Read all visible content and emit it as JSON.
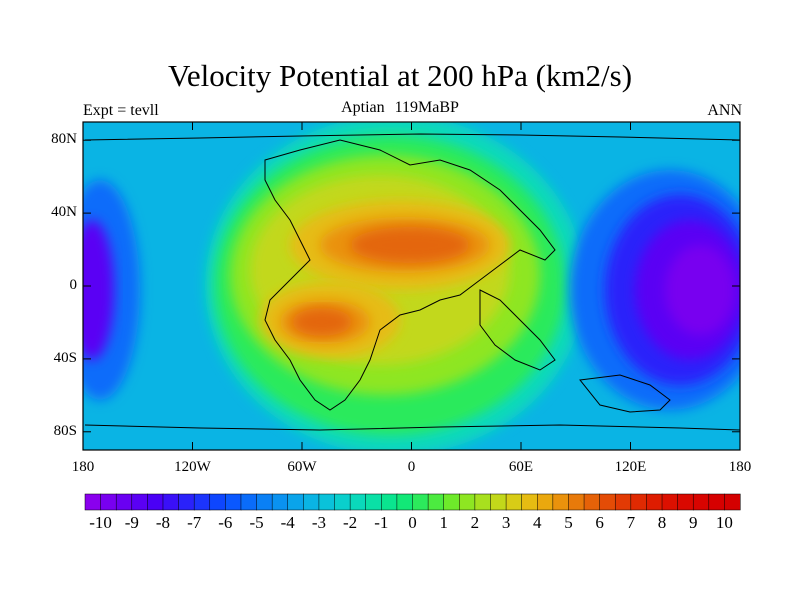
{
  "title": "Velocity Potential at 200 hPa (km2/s)",
  "left_label": "Expt = tevll",
  "center_label": "Aptian  119MaBP",
  "right_label": "ANN",
  "map": {
    "projection": "cylindrical equidistant",
    "lat_range": [
      -90,
      90
    ],
    "lon_range": [
      -180,
      180
    ],
    "lat_ticks": [
      "80N",
      "40N",
      "0",
      "40S",
      "80S"
    ],
    "lon_ticks": [
      "180",
      "120W",
      "60W",
      "0",
      "60E",
      "120E",
      "180"
    ],
    "field": "velocity potential",
    "level": "200 hPa",
    "units": "km2/s"
  },
  "colorbar": {
    "min": -10.5,
    "max": 10.5,
    "interval": 0.5,
    "labels": [
      "-10",
      "-9",
      "-8",
      "-7",
      "-6",
      "-5",
      "-4",
      "-3",
      "-2",
      "-1",
      "0",
      "1",
      "2",
      "3",
      "4",
      "5",
      "6",
      "7",
      "8",
      "9",
      "10"
    ],
    "colors": [
      "#8a00ee",
      "#7800f0",
      "#6a00f2",
      "#5a00f4",
      "#4a00f6",
      "#3a10f8",
      "#2a22fa",
      "#1c34fc",
      "#0e46fe",
      "#0a58ff",
      "#0a6cfa",
      "#0a80f5",
      "#0a92f0",
      "#0aa4ea",
      "#0ab4e4",
      "#0ac2da",
      "#0acfcc",
      "#0ad9bb",
      "#0ae0a6",
      "#0ae58f",
      "#12e877",
      "#2cea5c",
      "#4ceb40",
      "#6eea2a",
      "#8ee622",
      "#a8e01e",
      "#c2d81a",
      "#d8cc16",
      "#e6bc12",
      "#eaa80e",
      "#ea920c",
      "#e87a0a",
      "#e66208",
      "#e44c06",
      "#e23a04",
      "#e02a02",
      "#de1c00",
      "#dc1000",
      "#da0800",
      "#d80400",
      "#d60000",
      "#d40000"
    ]
  }
}
